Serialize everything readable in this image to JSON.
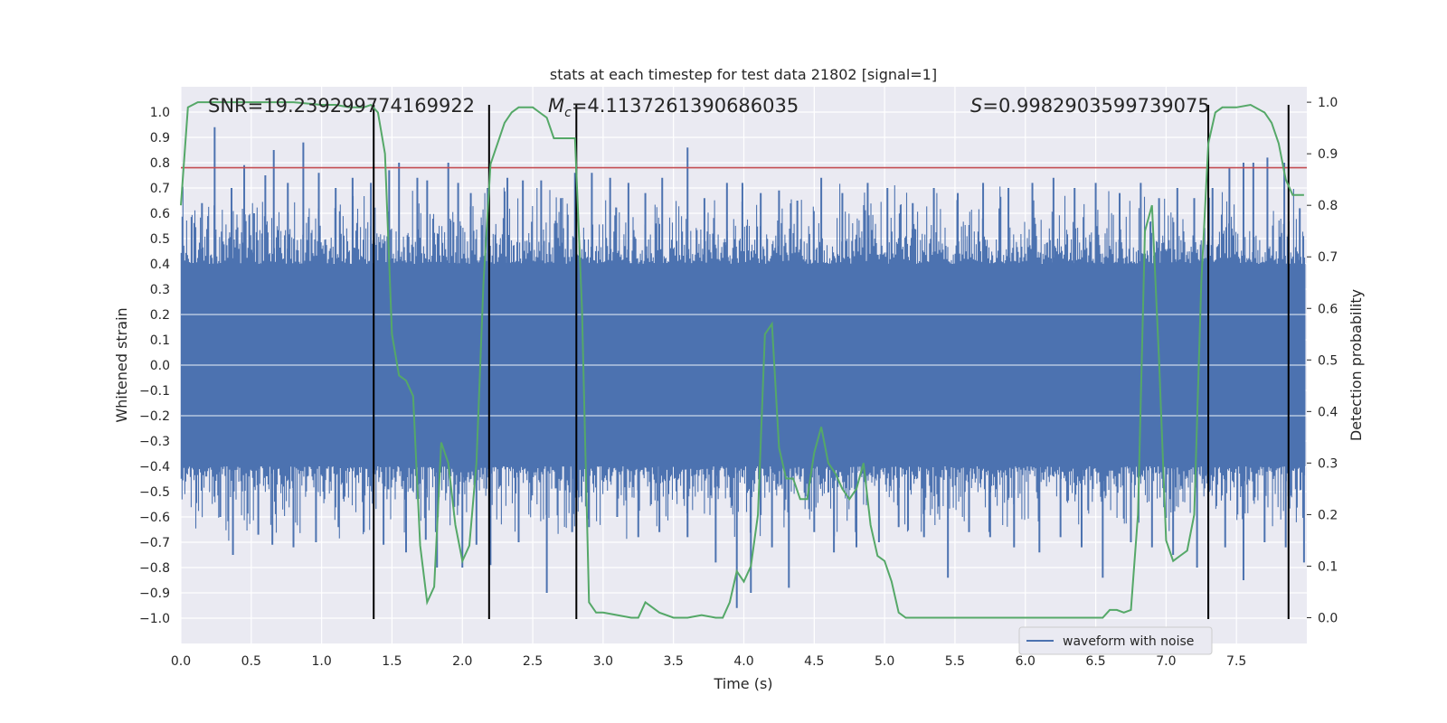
{
  "chart_data": {
    "type": "line",
    "title": "stats at each timestep for test data 21802 [signal=1]",
    "xlabel": "Time (s)",
    "ylabel": "Whitened strain",
    "y2label": "Detection probability",
    "xlim": [
      0.0,
      8.0
    ],
    "ylim": [
      -1.1,
      1.1
    ],
    "y2lim": [
      -0.05,
      1.03
    ],
    "xticks": [
      0.0,
      0.5,
      1.0,
      1.5,
      2.0,
      2.5,
      3.0,
      3.5,
      4.0,
      4.5,
      5.0,
      5.5,
      6.0,
      6.5,
      7.0,
      7.5
    ],
    "xtick_labels": [
      "0.0",
      "0.5",
      "1.0",
      "1.5",
      "2.0",
      "2.5",
      "3.0",
      "3.5",
      "4.0",
      "4.5",
      "5.0",
      "5.5",
      "6.0",
      "6.5",
      "7.0",
      "7.5"
    ],
    "yticks": [
      -1.0,
      -0.9,
      -0.8,
      -0.7,
      -0.6,
      -0.5,
      -0.4,
      -0.3,
      -0.2,
      -0.1,
      0.0,
      0.1,
      0.2,
      0.3,
      0.4,
      0.5,
      0.6,
      0.7,
      0.8,
      0.9,
      1.0
    ],
    "ytick_labels": [
      "−1.0",
      "−0.9",
      "−0.8",
      "−0.7",
      "−0.6",
      "−0.5",
      "−0.4",
      "−0.3",
      "−0.2",
      "−0.1",
      "0.0",
      "0.1",
      "0.2",
      "0.3",
      "0.4",
      "0.5",
      "0.6",
      "0.7",
      "0.8",
      "0.9",
      "1.0"
    ],
    "y2ticks": [
      0.0,
      0.1,
      0.2,
      0.3,
      0.4,
      0.5,
      0.6,
      0.7,
      0.8,
      0.9,
      1.0
    ],
    "y2tick_labels": [
      "0.0",
      "0.1",
      "0.2",
      "0.3",
      "0.4",
      "0.5",
      "0.6",
      "0.7",
      "0.8",
      "0.9",
      "1.0"
    ],
    "annotations": [
      {
        "text": "SNR=19.239299774169922",
        "x": 0.2,
        "y": 1.02
      },
      {
        "text": "M_c=4.1137261390686035",
        "x": 2.6,
        "y": 1.02
      },
      {
        "text": "S=0.9982903599739075",
        "x": 5.6,
        "y": 1.02
      }
    ],
    "annotation_mc_text": "=4.1137261390686035",
    "annotation_mc_symbol": "M",
    "annotation_mc_sub": "c",
    "annotation_s_text": "=0.9982903599739075",
    "annotation_s_symbol": "S",
    "threshold_line": {
      "value": 0.78,
      "axis": "left",
      "color": "#c44e52"
    },
    "vertical_lines_x": [
      1.37,
      2.19,
      2.81,
      7.3,
      7.87
    ],
    "series": [
      {
        "name": "waveform with noise",
        "axis": "left",
        "style": "dense noise trace",
        "color": "#4c72b0",
        "band_amplitude": 0.4,
        "peaks_pos": [
          0.15,
          0.24,
          0.36,
          0.45,
          0.52,
          0.6,
          0.66,
          0.76,
          0.87,
          0.98,
          1.1,
          1.22,
          1.35,
          1.48,
          1.55,
          1.68,
          1.75,
          1.9,
          1.97,
          2.06,
          2.18,
          2.32,
          2.43,
          2.56,
          2.7,
          2.8,
          2.92,
          3.05,
          3.18,
          3.3,
          3.42,
          3.6,
          3.72,
          3.88,
          3.99,
          4.12,
          4.25,
          4.38,
          4.55,
          4.7,
          4.88,
          5.02,
          5.2,
          5.35,
          5.52,
          5.7,
          5.88,
          6.05,
          6.2,
          6.35,
          6.5,
          6.67,
          6.82,
          6.95,
          7.08,
          7.2,
          7.33,
          7.45,
          7.55,
          7.62,
          7.72,
          7.84,
          7.95
        ],
        "peaks_pos_values": [
          0.64,
          0.94,
          0.7,
          0.79,
          0.6,
          0.75,
          0.85,
          0.72,
          0.88,
          0.76,
          0.7,
          0.74,
          0.72,
          0.77,
          0.8,
          0.74,
          0.73,
          0.8,
          0.72,
          0.68,
          0.7,
          0.74,
          0.73,
          0.73,
          0.66,
          0.76,
          0.76,
          0.74,
          0.72,
          0.68,
          0.74,
          0.86,
          0.66,
          0.72,
          0.72,
          0.68,
          0.69,
          0.65,
          0.74,
          0.68,
          0.72,
          0.7,
          0.64,
          0.7,
          0.68,
          0.72,
          0.7,
          0.72,
          0.74,
          0.7,
          0.72,
          0.68,
          0.72,
          0.66,
          0.7,
          0.66,
          0.7,
          0.78,
          0.8,
          0.8,
          0.82,
          0.8,
          0.62
        ],
        "peaks_neg": [
          0.28,
          0.37,
          0.55,
          0.65,
          0.8,
          0.96,
          1.12,
          1.3,
          1.44,
          1.6,
          1.74,
          1.82,
          2.0,
          2.1,
          2.2,
          2.4,
          2.6,
          2.78,
          2.9,
          3.1,
          3.25,
          3.4,
          3.6,
          3.8,
          3.95,
          4.05,
          4.2,
          4.32,
          4.5,
          4.64,
          4.8,
          4.96,
          5.1,
          5.28,
          5.45,
          5.6,
          5.75,
          5.92,
          6.1,
          6.25,
          6.4,
          6.55,
          6.75,
          6.9,
          7.05,
          7.22,
          7.3,
          7.42,
          7.55,
          7.7,
          7.85,
          7.98
        ],
        "peaks_neg_values": [
          -0.6,
          -0.75,
          -0.67,
          -0.71,
          -0.72,
          -0.7,
          -0.64,
          -0.66,
          -0.71,
          -0.74,
          -0.69,
          -0.8,
          -0.8,
          -0.71,
          -0.79,
          -0.7,
          -0.9,
          -0.66,
          -0.64,
          -0.6,
          -0.68,
          -0.66,
          -0.68,
          -0.78,
          -0.96,
          -0.9,
          -0.72,
          -0.88,
          -0.66,
          -0.74,
          -0.72,
          -0.7,
          -0.64,
          -0.68,
          -0.84,
          -0.66,
          -0.68,
          -0.72,
          -0.74,
          -0.68,
          -0.72,
          -0.84,
          -0.7,
          -0.72,
          -0.75,
          -0.8,
          -1.0,
          -0.72,
          -0.85,
          -0.7,
          -0.72,
          -0.78
        ]
      },
      {
        "name": "detection probability",
        "axis": "right",
        "color": "#55a868",
        "x": [
          0.0,
          0.05,
          0.12,
          0.2,
          0.4,
          0.6,
          0.8,
          1.0,
          1.1,
          1.2,
          1.3,
          1.35,
          1.4,
          1.45,
          1.5,
          1.55,
          1.6,
          1.65,
          1.7,
          1.75,
          1.8,
          1.85,
          1.9,
          1.95,
          2.0,
          2.05,
          2.1,
          2.15,
          2.2,
          2.25,
          2.3,
          2.35,
          2.4,
          2.45,
          2.5,
          2.55,
          2.6,
          2.65,
          2.7,
          2.75,
          2.8,
          2.85,
          2.9,
          2.95,
          3.0,
          3.1,
          3.2,
          3.25,
          3.3,
          3.35,
          3.4,
          3.5,
          3.6,
          3.7,
          3.8,
          3.85,
          3.9,
          3.95,
          4.0,
          4.05,
          4.1,
          4.15,
          4.2,
          4.25,
          4.3,
          4.35,
          4.4,
          4.45,
          4.5,
          4.55,
          4.6,
          4.65,
          4.7,
          4.75,
          4.8,
          4.85,
          4.9,
          4.95,
          5.0,
          5.05,
          5.1,
          5.15,
          5.2,
          5.25,
          5.3,
          5.5,
          5.7,
          5.9,
          6.1,
          6.3,
          6.5,
          6.55,
          6.6,
          6.65,
          6.7,
          6.75,
          6.8,
          6.85,
          6.9,
          6.95,
          7.0,
          7.05,
          7.1,
          7.15,
          7.2,
          7.25,
          7.3,
          7.35,
          7.4,
          7.45,
          7.5,
          7.6,
          7.7,
          7.75,
          7.8,
          7.85,
          7.9,
          7.95,
          7.98
        ],
        "y": [
          0.8,
          0.99,
          1.0,
          1.0,
          1.0,
          1.0,
          1.0,
          0.995,
          0.995,
          0.99,
          0.99,
          0.995,
          0.98,
          0.9,
          0.55,
          0.47,
          0.46,
          0.43,
          0.14,
          0.03,
          0.06,
          0.34,
          0.3,
          0.18,
          0.11,
          0.14,
          0.3,
          0.65,
          0.88,
          0.92,
          0.96,
          0.98,
          0.99,
          0.99,
          0.99,
          0.98,
          0.97,
          0.93,
          0.93,
          0.93,
          0.93,
          0.6,
          0.03,
          0.01,
          0.01,
          0.005,
          0.0,
          0.0,
          0.03,
          0.02,
          0.01,
          0.0,
          0.0,
          0.005,
          0.0,
          0.0,
          0.03,
          0.09,
          0.07,
          0.1,
          0.2,
          0.55,
          0.57,
          0.33,
          0.27,
          0.27,
          0.23,
          0.23,
          0.32,
          0.37,
          0.3,
          0.28,
          0.25,
          0.23,
          0.25,
          0.3,
          0.18,
          0.12,
          0.11,
          0.07,
          0.01,
          0.0,
          0.0,
          0.0,
          0.0,
          0.0,
          0.0,
          0.0,
          0.0,
          0.0,
          0.0,
          0.0,
          0.015,
          0.015,
          0.01,
          0.015,
          0.2,
          0.75,
          0.8,
          0.5,
          0.15,
          0.11,
          0.12,
          0.13,
          0.2,
          0.65,
          0.92,
          0.98,
          0.99,
          0.99,
          0.99,
          0.995,
          0.98,
          0.96,
          0.92,
          0.85,
          0.82,
          0.82,
          0.82
        ]
      }
    ],
    "legend": {
      "location": "lower-right",
      "entries": [
        "waveform with noise"
      ]
    }
  }
}
